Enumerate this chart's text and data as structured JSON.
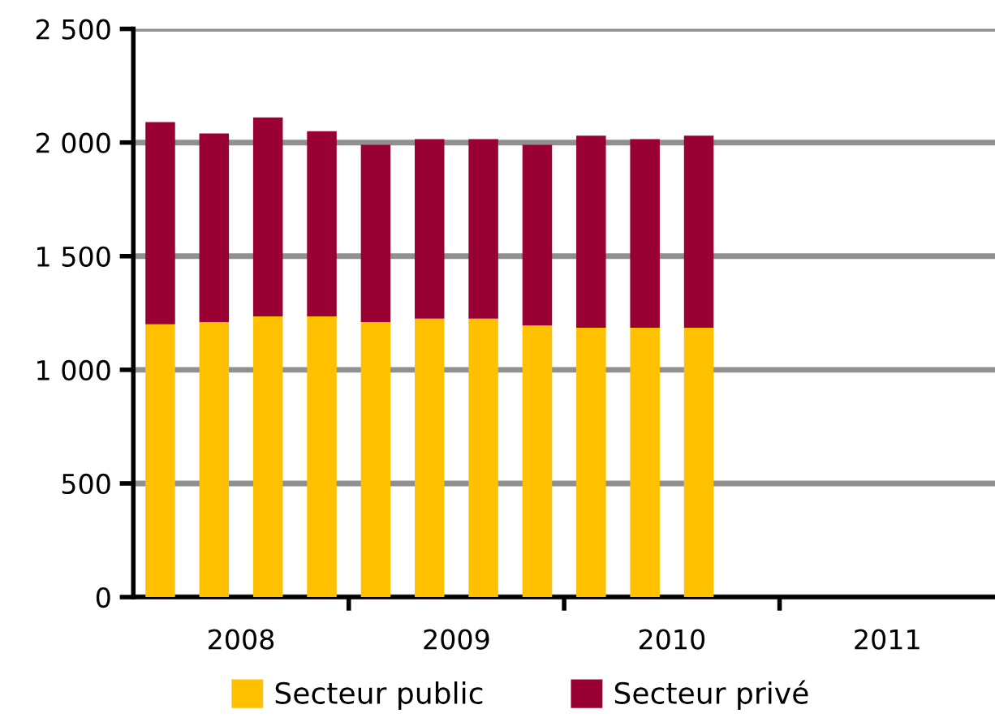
{
  "chart_data": {
    "type": "bar",
    "stacked": true,
    "x": [
      2008.125,
      2008.375,
      2008.625,
      2008.875,
      2009.125,
      2009.375,
      2009.625,
      2009.875,
      2010.125,
      2010.375,
      2010.625
    ],
    "series": [
      {
        "name": "Secteur public",
        "color": "#ffc000",
        "values": [
          1200,
          1210,
          1235,
          1235,
          1210,
          1225,
          1225,
          1195,
          1185,
          1185,
          1185
        ]
      },
      {
        "name": "Secteur privé",
        "color": "#990033",
        "values": [
          890,
          830,
          875,
          815,
          780,
          790,
          790,
          795,
          845,
          830,
          845
        ]
      }
    ],
    "xlim": [
      2008,
      2012
    ],
    "xticks": [
      {
        "value": 2009,
        "label": null
      },
      {
        "value": 2010,
        "label": null
      },
      {
        "value": 2011,
        "label": null
      },
      {
        "value": 2008.5,
        "label": "2008"
      },
      {
        "value": 2009.5,
        "label": "2009"
      },
      {
        "value": 2010.5,
        "label": "2010"
      },
      {
        "value": 2011.5,
        "label": "2011"
      }
    ],
    "ylim": [
      0,
      2500
    ],
    "yticks": [
      {
        "value": 0,
        "label": "0"
      },
      {
        "value": 500,
        "label": "500"
      },
      {
        "value": 1000,
        "label": "1 000"
      },
      {
        "value": 1500,
        "label": "1 500"
      },
      {
        "value": 2000,
        "label": "2 000"
      },
      {
        "value": 2500,
        "label": "2 500"
      }
    ],
    "grid": "y",
    "legend": "bottom"
  }
}
